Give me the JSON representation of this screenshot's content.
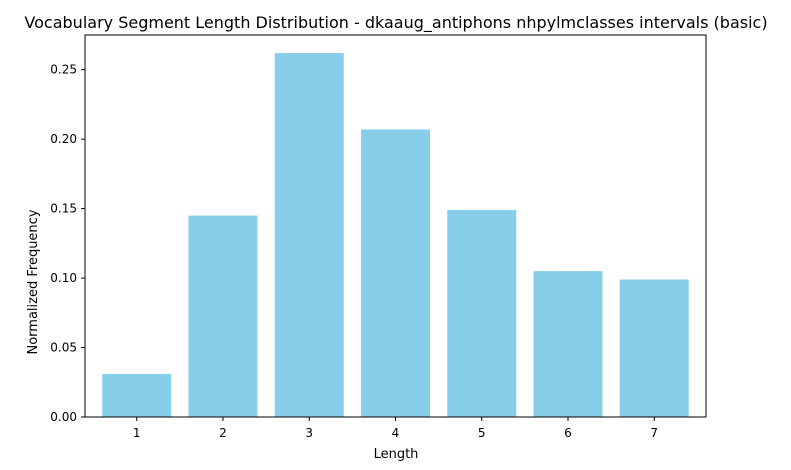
{
  "chart_data": {
    "type": "bar",
    "title": "Vocabulary Segment Length Distribution - dkaaug_antiphons nhpylmclasses intervals (basic)",
    "xlabel": "Length",
    "ylabel": "Normalized Frequency",
    "categories": [
      "1",
      "2",
      "3",
      "4",
      "5",
      "6",
      "7"
    ],
    "values": [
      0.031,
      0.145,
      0.262,
      0.207,
      0.149,
      0.105,
      0.099
    ],
    "ylim": [
      0,
      0.275
    ],
    "yticks": [
      0.0,
      0.05,
      0.1,
      0.15,
      0.2,
      0.25
    ],
    "ytick_labels": [
      "0.00",
      "0.05",
      "0.10",
      "0.15",
      "0.20",
      "0.25"
    ],
    "bar_color": "#87ceeb",
    "grid": false,
    "legend": null
  }
}
